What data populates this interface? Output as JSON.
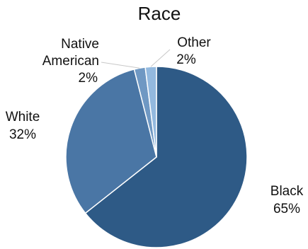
{
  "chart_data": {
    "type": "pie",
    "title": "Race",
    "slices": [
      {
        "name": "Black",
        "value": 65,
        "value_label": "65%",
        "color": "#2e5a86"
      },
      {
        "name": "White",
        "value": 32,
        "value_label": "32%",
        "color": "#4a76a5"
      },
      {
        "name": "Native American",
        "value": 2,
        "value_label": "2%",
        "color": "#6f98c3"
      },
      {
        "name": "Other",
        "value": 2,
        "value_label": "2%",
        "color": "#93b9df"
      }
    ],
    "start_angle_deg": 0,
    "direction": "clockwise",
    "legend": "none",
    "slice_border_color": "#ffffff"
  }
}
